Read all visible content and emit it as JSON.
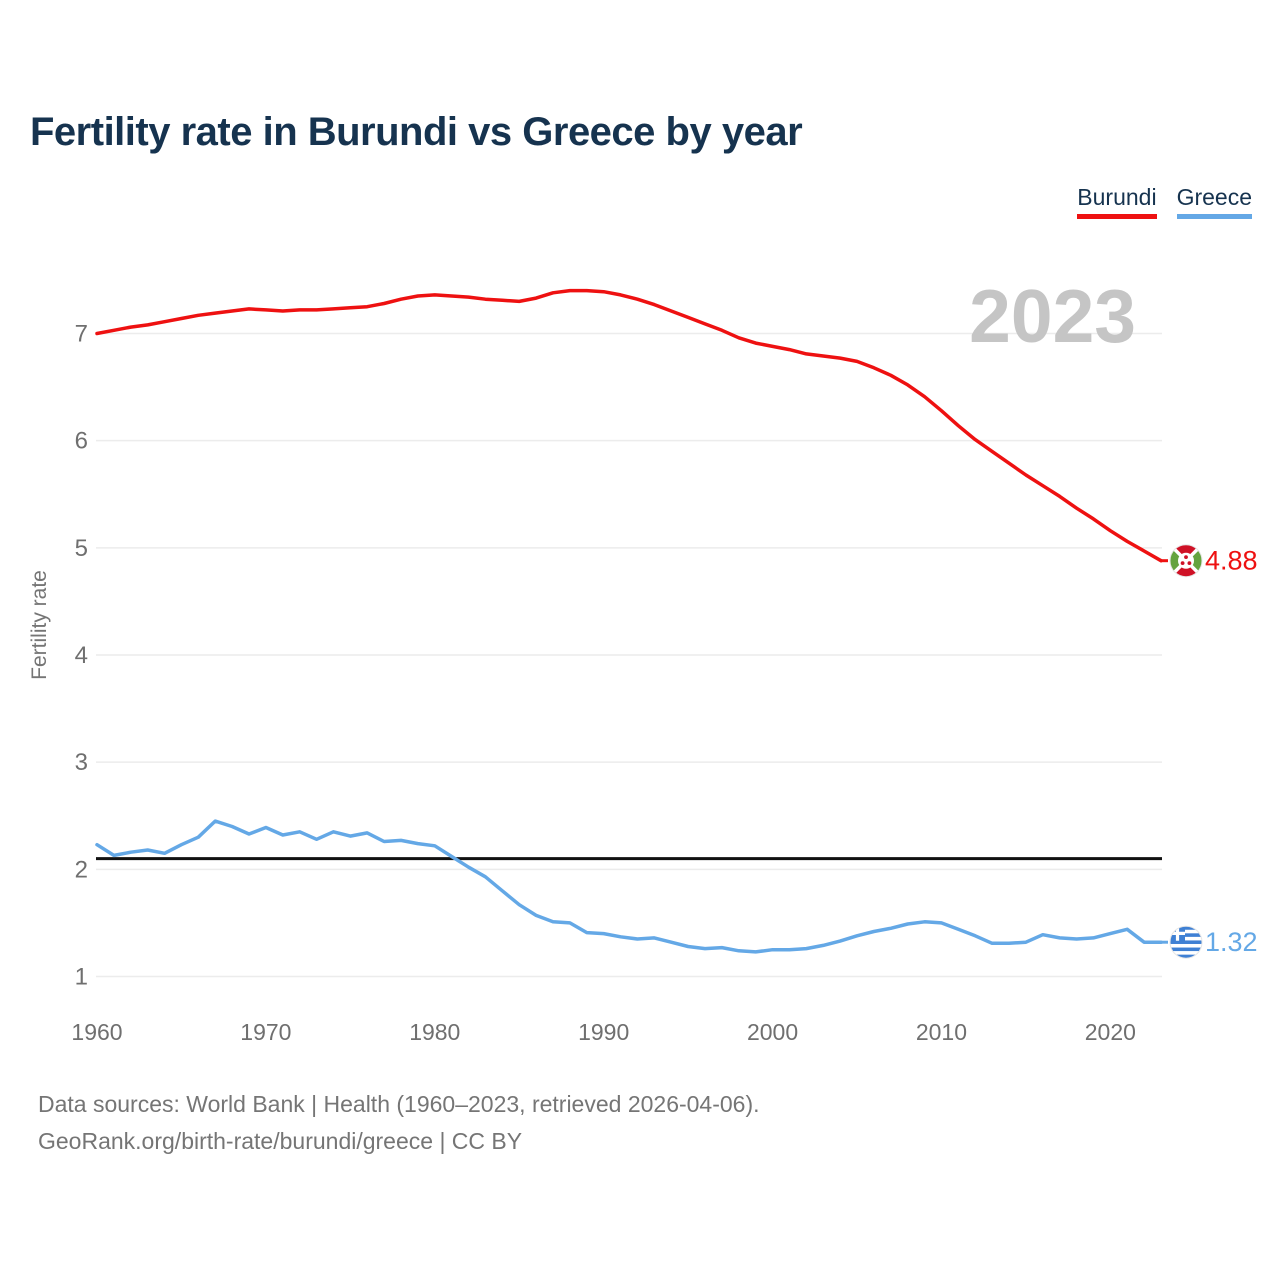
{
  "title": "Fertility rate in Burundi vs Greece by year",
  "legend": {
    "items": [
      {
        "label": "Burundi"
      },
      {
        "label": "Greece"
      }
    ]
  },
  "footer": {
    "line1": "Data sources: World Bank | Health (1960–2023, retrieved 2026-04-06).",
    "line2": "GeoRank.org/birth-rate/burundi/greece | CC BY"
  },
  "chart_data": {
    "type": "line",
    "title": "Fertility rate in Burundi vs Greece by year",
    "xlabel": "",
    "ylabel": "Fertility rate",
    "year_indicator": "2023",
    "grid": true,
    "legend_position": "top-right",
    "x_ticks": [
      1960,
      1970,
      1980,
      1990,
      2000,
      2010,
      2020
    ],
    "y_ticks": [
      1,
      2,
      3,
      4,
      5,
      6,
      7
    ],
    "ylim": [
      1,
      7
    ],
    "reference_line": {
      "value": 2.1,
      "color": "#111111"
    },
    "colors": {
      "grid": "#ececec",
      "axis_text": "#6f6f6f",
      "watermark": "#c5c5c5"
    },
    "years": [
      1960,
      1961,
      1962,
      1963,
      1964,
      1965,
      1966,
      1967,
      1968,
      1969,
      1970,
      1971,
      1972,
      1973,
      1974,
      1975,
      1976,
      1977,
      1978,
      1979,
      1980,
      1981,
      1982,
      1983,
      1984,
      1985,
      1986,
      1987,
      1988,
      1989,
      1990,
      1991,
      1992,
      1993,
      1994,
      1995,
      1996,
      1997,
      1998,
      1999,
      2000,
      2001,
      2002,
      2003,
      2004,
      2005,
      2006,
      2007,
      2008,
      2009,
      2010,
      2011,
      2012,
      2013,
      2014,
      2015,
      2016,
      2017,
      2018,
      2019,
      2020,
      2021,
      2022,
      2023
    ],
    "series": [
      {
        "name": "Burundi",
        "color": "#ee1111",
        "flag": "burundi-flag-icon",
        "end_label": "4.88",
        "end_value": 4.88,
        "values": [
          7.0,
          7.03,
          7.06,
          7.08,
          7.11,
          7.14,
          7.17,
          7.19,
          7.21,
          7.23,
          7.22,
          7.21,
          7.22,
          7.22,
          7.23,
          7.24,
          7.25,
          7.28,
          7.32,
          7.35,
          7.36,
          7.35,
          7.34,
          7.32,
          7.31,
          7.3,
          7.33,
          7.38,
          7.4,
          7.4,
          7.39,
          7.36,
          7.32,
          7.27,
          7.21,
          7.15,
          7.09,
          7.03,
          6.96,
          6.91,
          6.88,
          6.85,
          6.81,
          6.79,
          6.77,
          6.74,
          6.68,
          6.61,
          6.52,
          6.41,
          6.28,
          6.14,
          6.01,
          5.9,
          5.79,
          5.68,
          5.58,
          5.48,
          5.37,
          5.27,
          5.16,
          5.06,
          4.97,
          4.88
        ]
      },
      {
        "name": "Greece",
        "color": "#64a8e6",
        "flag": "greece-flag-icon",
        "end_label": "1.32",
        "end_value": 1.32,
        "values": [
          2.23,
          2.13,
          2.16,
          2.18,
          2.15,
          2.23,
          2.3,
          2.45,
          2.4,
          2.33,
          2.39,
          2.32,
          2.35,
          2.28,
          2.35,
          2.31,
          2.34,
          2.26,
          2.27,
          2.24,
          2.22,
          2.12,
          2.02,
          1.93,
          1.8,
          1.67,
          1.57,
          1.51,
          1.5,
          1.41,
          1.4,
          1.37,
          1.35,
          1.36,
          1.32,
          1.28,
          1.26,
          1.27,
          1.24,
          1.23,
          1.25,
          1.25,
          1.26,
          1.29,
          1.33,
          1.38,
          1.42,
          1.45,
          1.49,
          1.51,
          1.5,
          1.44,
          1.38,
          1.31,
          1.31,
          1.32,
          1.39,
          1.36,
          1.35,
          1.36,
          1.4,
          1.44,
          1.32,
          1.32
        ]
      }
    ]
  }
}
